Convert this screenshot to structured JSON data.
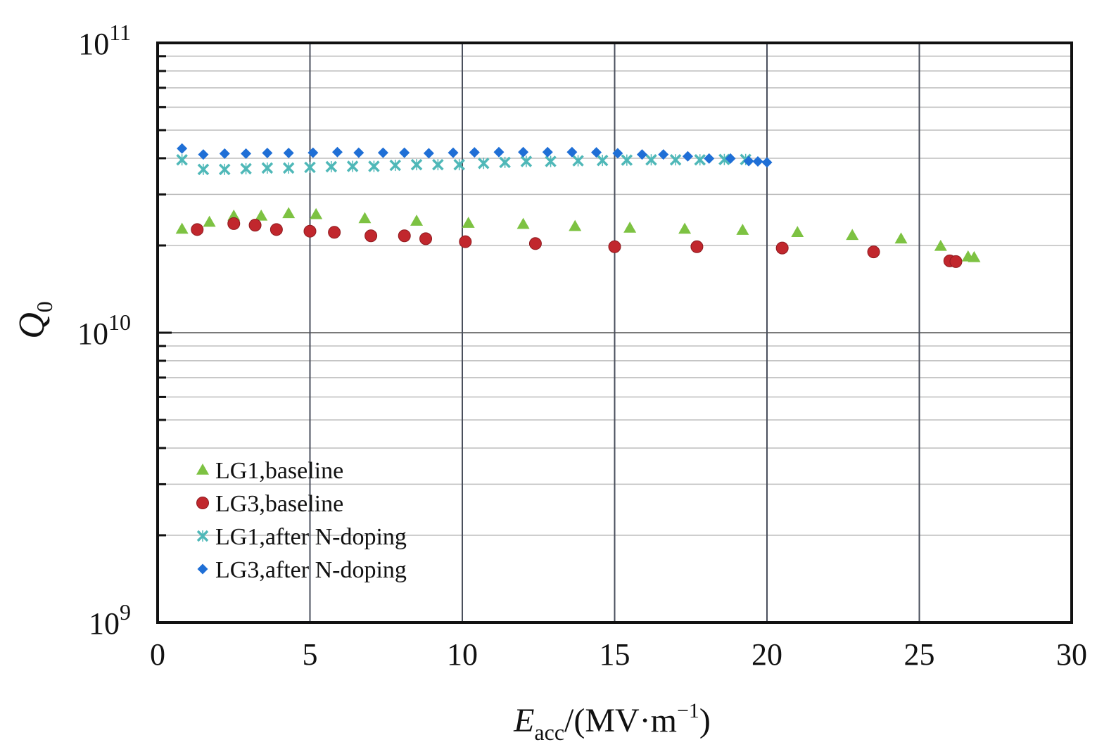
{
  "chart_data": {
    "type": "scatter",
    "xlabel": {
      "main": "E",
      "sub": "acc",
      "rest": "/(MV·m",
      "sup": "−1",
      "close": ")"
    },
    "ylabel": {
      "main": "Q",
      "sub": "0"
    },
    "xlim": [
      0,
      30
    ],
    "ylim": [
      1000000000,
      100000000000
    ],
    "yscale": "log",
    "grid": true,
    "legend_position": "bottom-left",
    "x_ticks": [
      "0",
      "5",
      "10",
      "15",
      "20",
      "25",
      "30"
    ],
    "y_ticks": [
      {
        "value": 1000000000,
        "base": "10",
        "exp": "9"
      },
      {
        "value": 10000000000,
        "base": "10",
        "exp": "10"
      },
      {
        "value": 100000000000,
        "base": "10",
        "exp": "11"
      }
    ],
    "series": [
      {
        "name": "LG1,baseline",
        "marker": "triangle",
        "color": "#7dc242",
        "x": [
          0.8,
          1.7,
          2.5,
          3.4,
          4.3,
          5.2,
          6.8,
          8.5,
          10.2,
          12.0,
          13.7,
          15.5,
          17.3,
          19.2,
          21.0,
          22.8,
          24.4,
          25.7,
          26.6,
          26.8
        ],
        "y": [
          22800000000,
          24100000000,
          25300000000,
          25300000000,
          25800000000,
          25600000000,
          24800000000,
          24300000000,
          23900000000,
          23700000000,
          23300000000,
          23000000000,
          22800000000,
          22600000000,
          22200000000,
          21700000000,
          21100000000,
          19900000000,
          18300000000,
          18200000000
        ]
      },
      {
        "name": "LG3,baseline",
        "marker": "circle",
        "color": "#c1272d",
        "x": [
          1.3,
          2.5,
          3.2,
          3.9,
          5.0,
          5.8,
          7.0,
          8.1,
          8.8,
          10.1,
          12.4,
          15.0,
          17.7,
          20.5,
          23.5,
          26.0,
          26.2
        ],
        "y": [
          22700000000,
          23800000000,
          23500000000,
          22700000000,
          22400000000,
          22200000000,
          21600000000,
          21600000000,
          21100000000,
          20600000000,
          20300000000,
          19800000000,
          19800000000,
          19600000000,
          19000000000,
          17700000000,
          17600000000
        ]
      },
      {
        "name": "LG1,after N-doping",
        "marker": "x",
        "color": "#4fb8b8",
        "x": [
          0.8,
          1.5,
          2.2,
          2.9,
          3.6,
          4.3,
          5.0,
          5.7,
          6.4,
          7.1,
          7.8,
          8.5,
          9.2,
          9.9,
          10.7,
          11.4,
          12.1,
          12.9,
          13.8,
          14.6,
          15.4,
          16.2,
          17.0,
          17.8,
          18.6,
          19.3
        ],
        "y": [
          39500000000,
          36600000000,
          36600000000,
          36800000000,
          37000000000,
          37000000000,
          37200000000,
          37400000000,
          37500000000,
          37500000000,
          37800000000,
          38000000000,
          38000000000,
          38000000000,
          38400000000,
          38700000000,
          39000000000,
          39000000000,
          39200000000,
          39300000000,
          39400000000,
          39500000000,
          39500000000,
          39500000000,
          39600000000,
          39600000000
        ]
      },
      {
        "name": "LG3,after N-doping",
        "marker": "diamond",
        "color": "#1f6fd6",
        "x": [
          0.8,
          1.5,
          2.2,
          2.9,
          3.6,
          4.3,
          5.1,
          5.9,
          6.6,
          7.4,
          8.1,
          8.9,
          9.7,
          10.4,
          11.2,
          12.0,
          12.8,
          13.6,
          14.4,
          15.1,
          15.9,
          16.6,
          17.4,
          18.1,
          18.8,
          19.4,
          19.7,
          20.0
        ],
        "y": [
          43200000000,
          41200000000,
          41500000000,
          41500000000,
          41700000000,
          41700000000,
          41800000000,
          42000000000,
          41800000000,
          41800000000,
          41800000000,
          41600000000,
          41800000000,
          41900000000,
          42000000000,
          42000000000,
          42000000000,
          42000000000,
          41900000000,
          41600000000,
          41200000000,
          41200000000,
          40600000000,
          39900000000,
          39900000000,
          39100000000,
          39000000000,
          38700000000
        ]
      }
    ]
  }
}
